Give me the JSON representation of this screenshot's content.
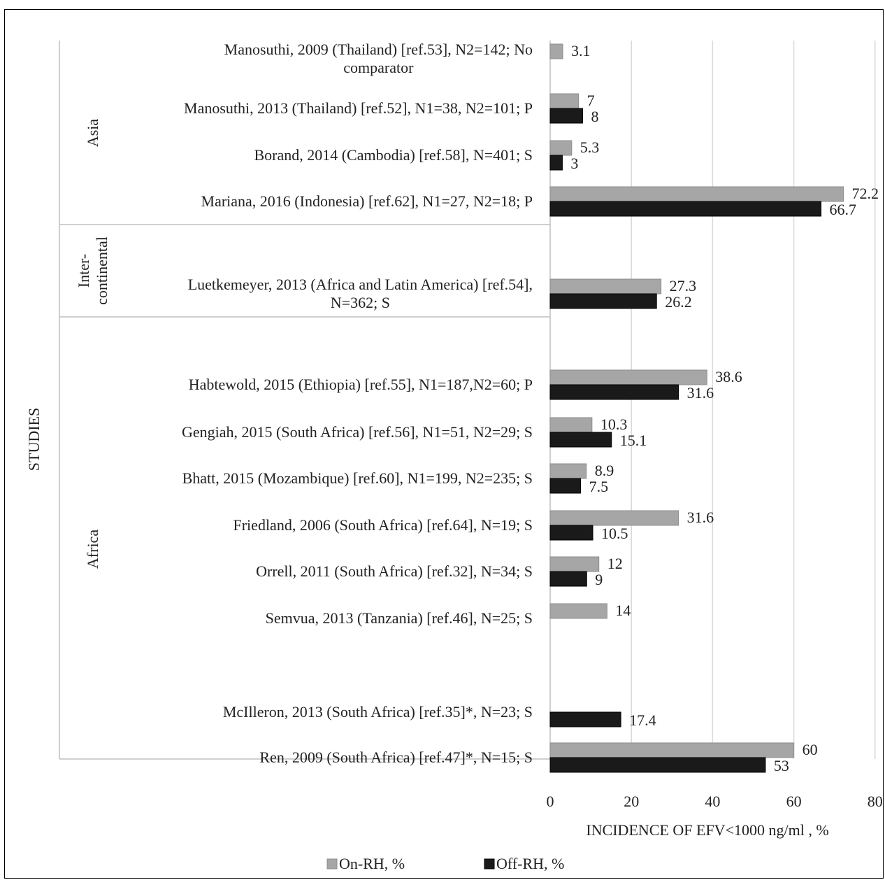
{
  "chart_data": {
    "type": "bar",
    "orientation": "horizontal",
    "xlabel": "INCIDENCE OF EFV<1000  ng/ml , %",
    "ylabel": "STUDIES",
    "xlim": [
      0,
      80
    ],
    "xticks": [
      0,
      20,
      40,
      60,
      80
    ],
    "grid": true,
    "legend_position": "bottom",
    "series": [
      {
        "name": "On-RH,  %",
        "color": "#a6a6a6"
      },
      {
        "name": "Off-RH,  %",
        "color": "#1a1a1a"
      }
    ],
    "groups": [
      {
        "name": "Asia",
        "name_lines": [
          "Asia"
        ]
      },
      {
        "name": "Inter-continental",
        "name_lines": [
          "Inter-",
          "continental"
        ]
      },
      {
        "name": "Africa",
        "name_lines": [
          "Africa"
        ]
      }
    ],
    "studies": [
      {
        "group": 0,
        "label": [
          "Manosuthi, 2009 (Thailand) [ref.53], N2=142; No",
          "comparator"
        ],
        "on": 3.1,
        "off": null,
        "on_label": "3.1",
        "off_label": ""
      },
      {
        "group": 0,
        "label": [
          "Manosuthi, 2013 (Thailand) [ref.52], N1=38, N2=101; P"
        ],
        "on": 7,
        "off": 8,
        "on_label": "7",
        "off_label": "8"
      },
      {
        "group": 0,
        "label": [
          "Borand, 2014 (Cambodia) [ref.58], N=401; S"
        ],
        "on": 5.3,
        "off": 3,
        "on_label": "5.3",
        "off_label": "3"
      },
      {
        "group": 0,
        "label": [
          "Mariana, 2016 (Indonesia) [ref.62], N1=27, N2=18; P"
        ],
        "on": 72.2,
        "off": 66.7,
        "on_label": "72.2",
        "off_label": "66.7"
      },
      {
        "group": 1,
        "label": [
          "Luetkemeyer, 2013 (Africa and Latin America) [ref.54],",
          "N=362; S"
        ],
        "on": 27.3,
        "off": 26.2,
        "on_label": "27.3",
        "off_label": "26.2"
      },
      {
        "group": 2,
        "label": [
          "Habtewold, 2015 (Ethiopia) [ref.55], N1=187,N2=60; P"
        ],
        "on": 38.6,
        "off": 31.6,
        "on_label": "38.6",
        "off_label": "31.6"
      },
      {
        "group": 2,
        "label": [
          "Gengiah, 2015 (South Africa) [ref.56], N1=51, N2=29; S"
        ],
        "on": 10.3,
        "off": 15.1,
        "on_label": "10.3",
        "off_label": "15.1"
      },
      {
        "group": 2,
        "label": [
          "Bhatt, 2015 (Mozambique) [ref.60], N1=199, N2=235; S"
        ],
        "on": 8.9,
        "off": 7.5,
        "on_label": "8.9",
        "off_label": "7.5"
      },
      {
        "group": 2,
        "label": [
          "Friedland, 2006 (South Africa) [ref.64], N=19; S"
        ],
        "on": 31.6,
        "off": 10.5,
        "on_label": "31.6",
        "off_label": "10.5"
      },
      {
        "group": 2,
        "label": [
          "Orrell, 2011 (South Africa) [ref.32], N=34; S"
        ],
        "on": 12,
        "off": 9,
        "on_label": "12",
        "off_label": "9"
      },
      {
        "group": 2,
        "label": [
          "Semvua, 2013 (Tanzania) [ref.46], N=25; S"
        ],
        "on": 14,
        "off": null,
        "on_label": "14",
        "off_label": ""
      },
      {
        "group": 2,
        "label": [
          "McIlleron, 2013 (South Africa) [ref.35]*, N=23; S"
        ],
        "on": null,
        "off": 17.4,
        "on_label": "",
        "off_label": "17.4"
      },
      {
        "group": 2,
        "label": [
          "Ren, 2009 (South Africa) [ref.47]*, N=15; S"
        ],
        "on": 60,
        "off": 53,
        "on_label": "60",
        "off_label": "53"
      }
    ]
  }
}
